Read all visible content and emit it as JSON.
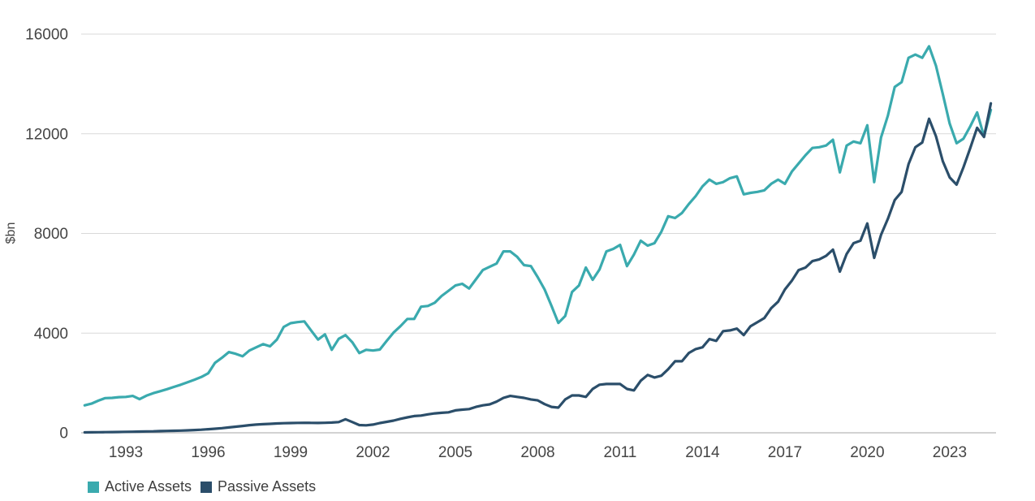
{
  "chart_data": {
    "type": "line",
    "title": "",
    "xlabel": "",
    "ylabel": "$bn",
    "ylim": [
      0,
      16000
    ],
    "y_ticks": [
      0,
      4000,
      8000,
      12000,
      16000
    ],
    "x_ticks": [
      1993,
      1996,
      1999,
      2002,
      2005,
      2008,
      2011,
      2014,
      2017,
      2020,
      2023
    ],
    "x_start": 1991.5,
    "x_step": 0.25,
    "x_end": 2024.5,
    "grid": "horizontal",
    "legend_position": "bottom-left",
    "series": [
      {
        "name": "Active Assets",
        "color": "#3AAAAE",
        "values": [
          1100,
          1170,
          1290,
          1390,
          1400,
          1430,
          1440,
          1480,
          1350,
          1490,
          1590,
          1670,
          1750,
          1840,
          1930,
          2030,
          2130,
          2240,
          2390,
          2810,
          3010,
          3240,
          3170,
          3070,
          3300,
          3430,
          3560,
          3470,
          3740,
          4250,
          4400,
          4440,
          4470,
          4100,
          3740,
          3950,
          3330,
          3770,
          3920,
          3630,
          3200,
          3330,
          3300,
          3340,
          3690,
          4020,
          4280,
          4570,
          4570,
          5060,
          5090,
          5220,
          5490,
          5700,
          5910,
          5980,
          5790,
          6160,
          6530,
          6660,
          6790,
          7280,
          7280,
          7060,
          6730,
          6690,
          6240,
          5750,
          5090,
          4410,
          4690,
          5650,
          5910,
          6630,
          6140,
          6560,
          7280,
          7380,
          7540,
          6690,
          7150,
          7710,
          7510,
          7610,
          8070,
          8690,
          8620,
          8820,
          9180,
          9500,
          9890,
          10160,
          9990,
          10060,
          10220,
          10290,
          9570,
          9630,
          9670,
          9730,
          9990,
          10160,
          9990,
          10480,
          10810,
          11140,
          11430,
          11460,
          11530,
          11760,
          10450,
          11530,
          11690,
          11620,
          12340,
          10060,
          11850,
          12730,
          13880,
          14070,
          15050,
          15180,
          15050,
          15510,
          14730,
          13600,
          12410,
          11620,
          11800,
          12300,
          12860,
          11890,
          12960
        ]
      },
      {
        "name": "Passive Assets",
        "color": "#2B4E6A",
        "values": [
          15,
          18,
          22,
          26,
          30,
          34,
          38,
          43,
          48,
          54,
          60,
          67,
          74,
          81,
          89,
          98,
          110,
          125,
          142,
          162,
          185,
          215,
          245,
          275,
          305,
          330,
          345,
          360,
          375,
          385,
          392,
          396,
          400,
          398,
          395,
          400,
          412,
          430,
          545,
          430,
          310,
          300,
          330,
          390,
          440,
          490,
          560,
          620,
          670,
          690,
          740,
          780,
          800,
          820,
          900,
          930,
          950,
          1040,
          1100,
          1140,
          1250,
          1400,
          1480,
          1440,
          1400,
          1340,
          1300,
          1150,
          1040,
          1010,
          1340,
          1500,
          1500,
          1440,
          1760,
          1930,
          1960,
          1960,
          1960,
          1760,
          1700,
          2090,
          2320,
          2220,
          2290,
          2550,
          2870,
          2870,
          3200,
          3360,
          3430,
          3760,
          3690,
          4080,
          4110,
          4180,
          3920,
          4280,
          4440,
          4600,
          5000,
          5260,
          5750,
          6100,
          6530,
          6630,
          6890,
          6960,
          7100,
          7350,
          6470,
          7180,
          7610,
          7710,
          8400,
          7020,
          7940,
          8590,
          9340,
          9670,
          10780,
          11460,
          11650,
          12600,
          11900,
          10900,
          10250,
          9960,
          10650,
          11430,
          12240,
          11870,
          13220
        ]
      }
    ]
  },
  "style": {
    "grid_color": "#D9D9D9",
    "zero_line_color": "#A6A6A6",
    "tick_text_color": "#454545",
    "line_width": 3.2
  }
}
